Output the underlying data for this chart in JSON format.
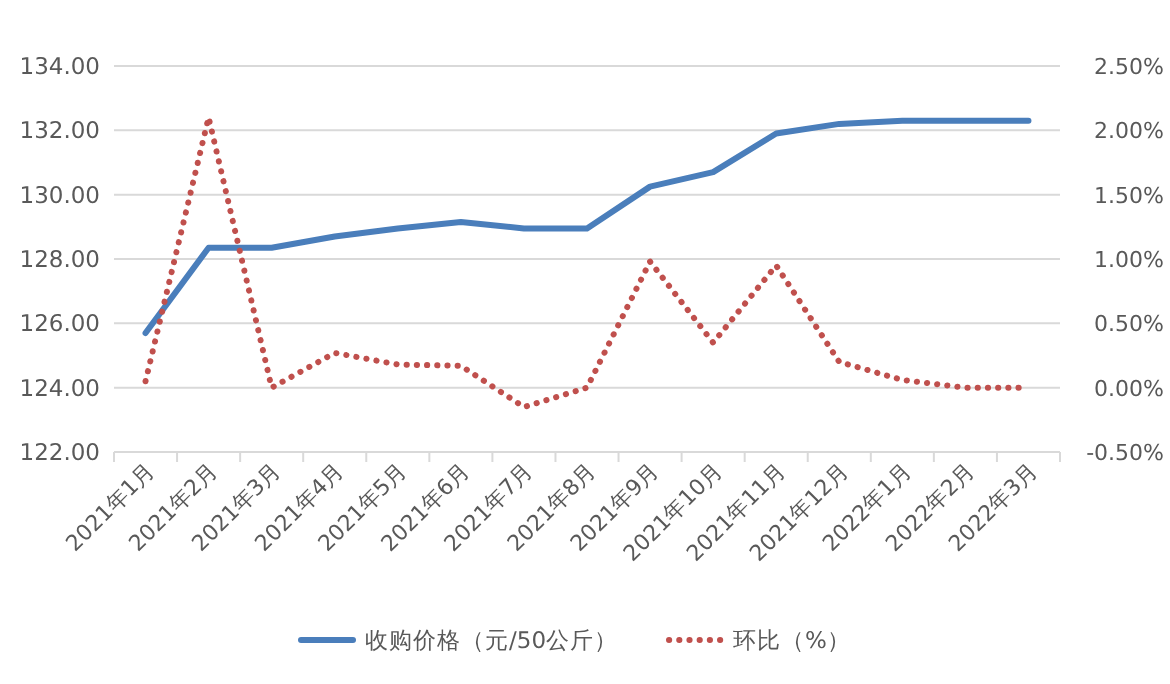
{
  "chart_data": {
    "type": "line",
    "categories": [
      "2021年1月",
      "2021年2月",
      "2021年3月",
      "2021年4月",
      "2021年5月",
      "2021年6月",
      "2021年7月",
      "2021年8月",
      "2021年9月",
      "2021年10月",
      "2021年11月",
      "2021年12月",
      "2022年1月",
      "2022年2月",
      "2022年3月"
    ],
    "series": [
      {
        "name": "收购价格（元/50公斤）",
        "color": "#4a7ebb",
        "line_style": "solid",
        "values": [
          125.7,
          128.35,
          128.35,
          128.7,
          128.95,
          129.15,
          128.95,
          128.95,
          130.25,
          130.7,
          131.9,
          132.2,
          132.3,
          132.3,
          132.3
        ]
      },
      {
        "name": "环比（%）",
        "color": "#c0504d",
        "line_style": "dotted",
        "axis": "y2",
        "values": [
          0.05,
          2.1,
          0.0,
          0.27,
          0.18,
          0.17,
          -0.15,
          0.0,
          0.98,
          0.35,
          0.95,
          0.2,
          0.06,
          0.0,
          0.0
        ]
      }
    ],
    "ylim": [
      122,
      134
    ],
    "yticks": [
      {
        "value": 122,
        "label": "122.00"
      },
      {
        "value": 124,
        "label": "124.00"
      },
      {
        "value": 126,
        "label": "126.00"
      },
      {
        "value": 128,
        "label": "128.00"
      },
      {
        "value": 130,
        "label": "130.00"
      },
      {
        "value": 132,
        "label": "132.00"
      },
      {
        "value": 134,
        "label": "134.00"
      }
    ],
    "y2lim": [
      -0.5,
      2.5
    ],
    "y2ticks": [
      {
        "value": -0.5,
        "label": "-0.50%"
      },
      {
        "value": 0,
        "label": "0.00%"
      },
      {
        "value": 0.5,
        "label": "0.50%"
      },
      {
        "value": 1,
        "label": "1.00%"
      },
      {
        "value": 1.5,
        "label": "1.50%"
      },
      {
        "value": 2,
        "label": "2.00%"
      },
      {
        "value": 2.5,
        "label": "2.50%"
      }
    ],
    "grid": "y",
    "legend": "bottom",
    "marker": "none"
  }
}
